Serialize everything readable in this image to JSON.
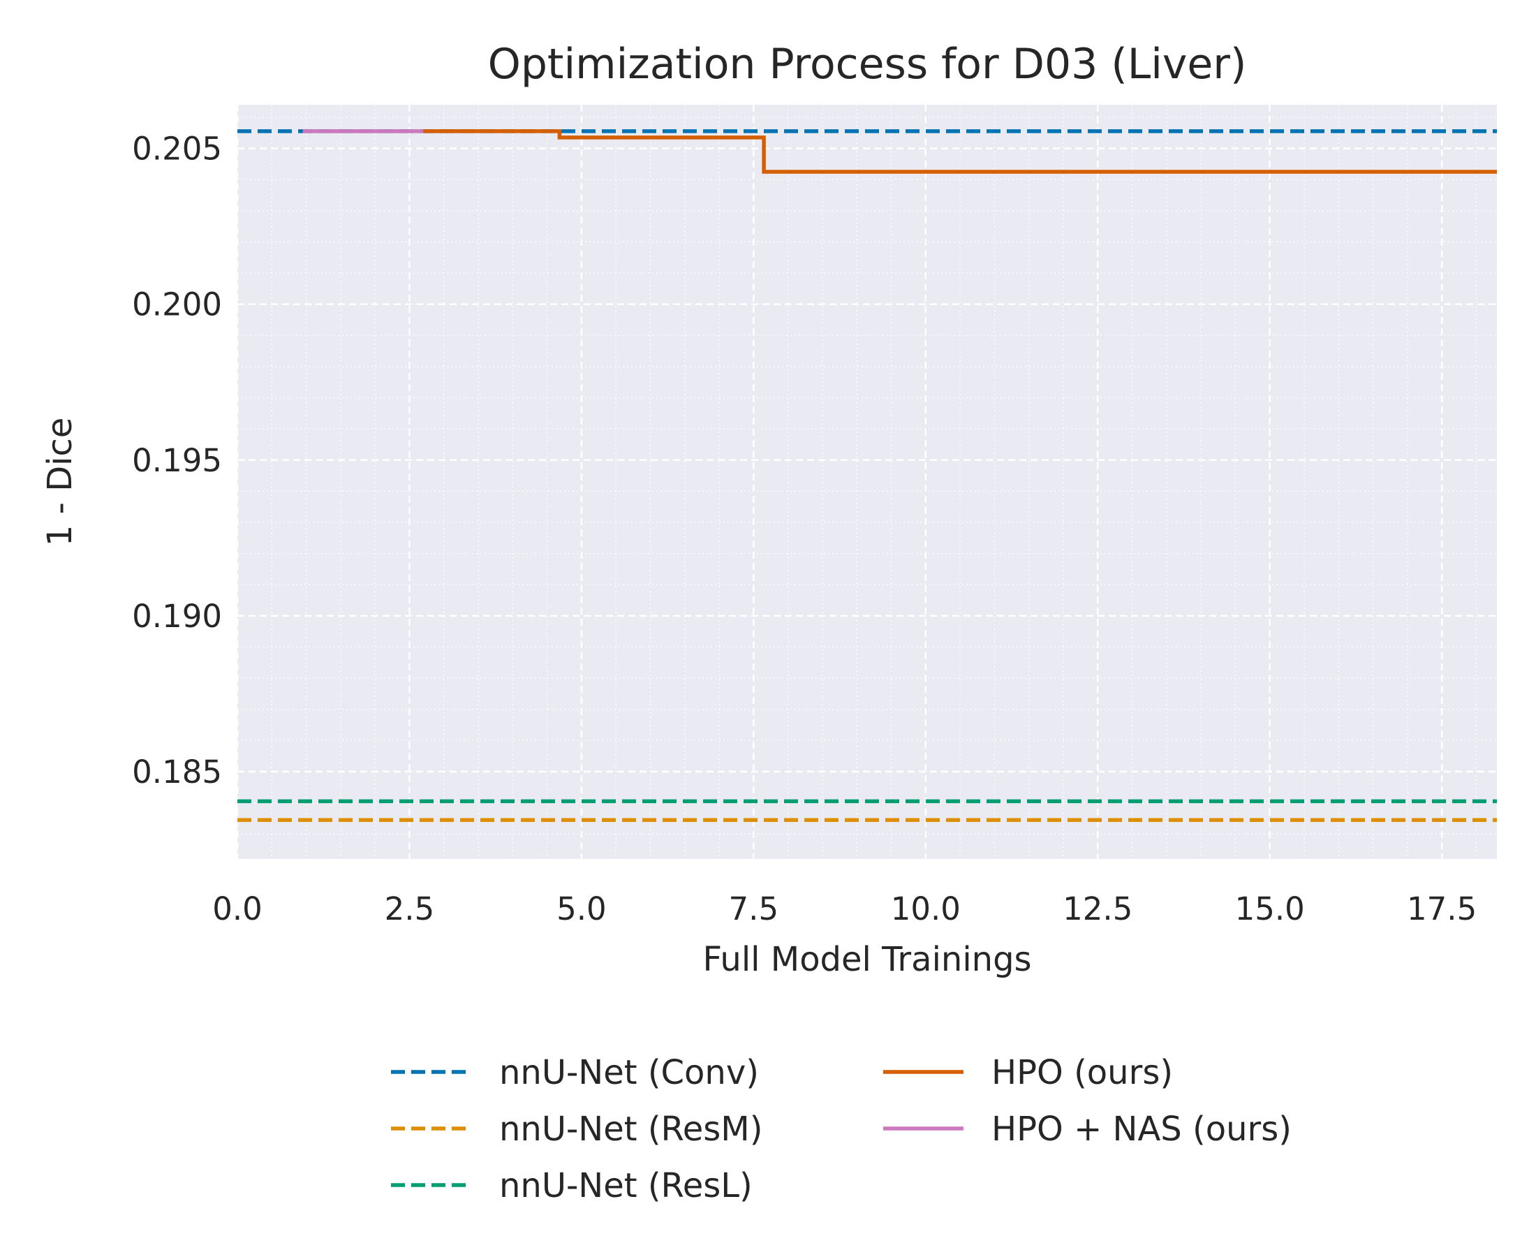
{
  "chart_data": {
    "type": "line",
    "title": "Optimization Process for D03 (Liver)",
    "xlabel": "Full Model Trainings",
    "ylabel": "1 - Dice",
    "xlim": [
      0,
      18.3
    ],
    "ylim": [
      0.1822,
      0.2064
    ],
    "xticks": [
      0,
      2.5,
      5,
      7.5,
      10,
      12.5,
      15,
      17.5
    ],
    "xtick_labels": [
      "0.0",
      "2.5",
      "5.0",
      "7.5",
      "10.0",
      "12.5",
      "15.0",
      "17.5"
    ],
    "yticks": [
      0.185,
      0.19,
      0.195,
      0.2,
      0.205
    ],
    "ytick_labels": [
      "0.185",
      "0.190",
      "0.195",
      "0.200",
      "0.205"
    ],
    "grid": true,
    "legend_position": "bottom",
    "series": [
      {
        "name": "nnU-Net (Conv)",
        "style": "dashed",
        "color": "#0173b2",
        "x": [
          0,
          18.3
        ],
        "y": [
          0.20555,
          0.20555
        ]
      },
      {
        "name": "nnU-Net (ResM)",
        "style": "dashed",
        "color": "#de8f05",
        "x": [
          0,
          18.3
        ],
        "y": [
          0.18345,
          0.18345
        ]
      },
      {
        "name": "nnU-Net (ResL)",
        "style": "dashed",
        "color": "#029e73",
        "x": [
          0,
          18.3
        ],
        "y": [
          0.18405,
          0.18405
        ]
      },
      {
        "name": "HPO (ours)",
        "style": "solid",
        "color": "#d55e00",
        "step": true,
        "x": [
          2.7,
          4.68,
          7.65,
          18.3
        ],
        "y": [
          0.20555,
          0.20535,
          0.20425,
          0.20425
        ]
      },
      {
        "name": "HPO + NAS (ours)",
        "style": "solid",
        "color": "#cc78bc",
        "step": true,
        "x": [
          0.95,
          2.7
        ],
        "y": [
          0.20555,
          0.20555
        ]
      }
    ]
  }
}
